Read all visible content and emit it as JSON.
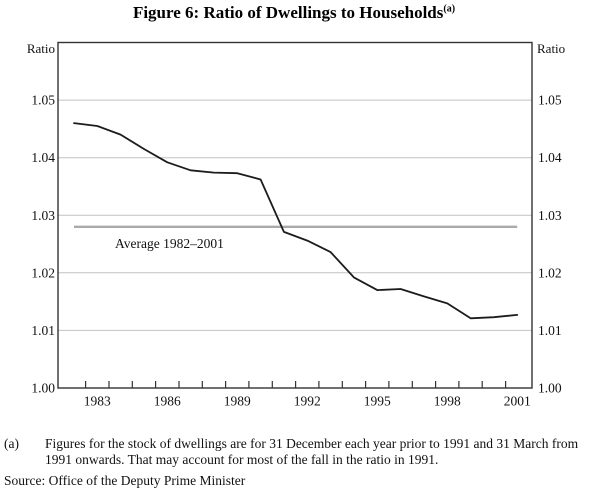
{
  "figure": {
    "title": "Figure 6: Ratio of Dwellings to Households",
    "title_superscript": "(a)",
    "y_axis_label_left": "Ratio",
    "y_axis_label_right": "Ratio",
    "average_label": "Average 1982–2001"
  },
  "footnote": {
    "marker": "(a)",
    "text": "Figures for the stock of dwellings are for 31 December each year prior to 1991 and 31 March from 1991 onwards. That may account for most of the fall in the ratio in 1991."
  },
  "source": "Source: Office of the Deputy Prime Minister",
  "chart_data": {
    "type": "line",
    "title": "Figure 6: Ratio of Dwellings to Households (a)",
    "ylabel_left": "Ratio",
    "ylabel_right": "Ratio",
    "x": [
      1982,
      1983,
      1984,
      1985,
      1986,
      1987,
      1988,
      1989,
      1990,
      1991,
      1992,
      1993,
      1994,
      1995,
      1996,
      1997,
      1998,
      1999,
      2000,
      2001
    ],
    "values": [
      1.046,
      1.0455,
      1.044,
      1.0415,
      1.0392,
      1.0378,
      1.0374,
      1.0373,
      1.0362,
      1.0271,
      1.0256,
      1.0236,
      1.0192,
      1.017,
      1.0172,
      1.0159,
      1.0147,
      1.0121,
      1.0123,
      1.0127
    ],
    "average_value": 1.028,
    "average_label": "Average 1982–2001",
    "ylim": [
      1.0,
      1.06
    ],
    "y_tick_values": [
      1.0,
      1.01,
      1.02,
      1.03,
      1.04,
      1.05
    ],
    "y_tick_labels": [
      "1.00",
      "1.01",
      "1.02",
      "1.03",
      "1.04",
      "1.05"
    ],
    "x_tick_label_years": [
      1983,
      1986,
      1989,
      1992,
      1995,
      1998,
      2001
    ],
    "x_tick_labels": [
      "1983",
      "1986",
      "1989",
      "1992",
      "1995",
      "1998",
      "2001"
    ],
    "grid": true,
    "legend": "none",
    "line_color": "#1c1c1c",
    "grid_color": "#c2c2c2",
    "average_line_color": "#aaaaaa",
    "axis_color": "#333333",
    "text_color": "#111111"
  }
}
